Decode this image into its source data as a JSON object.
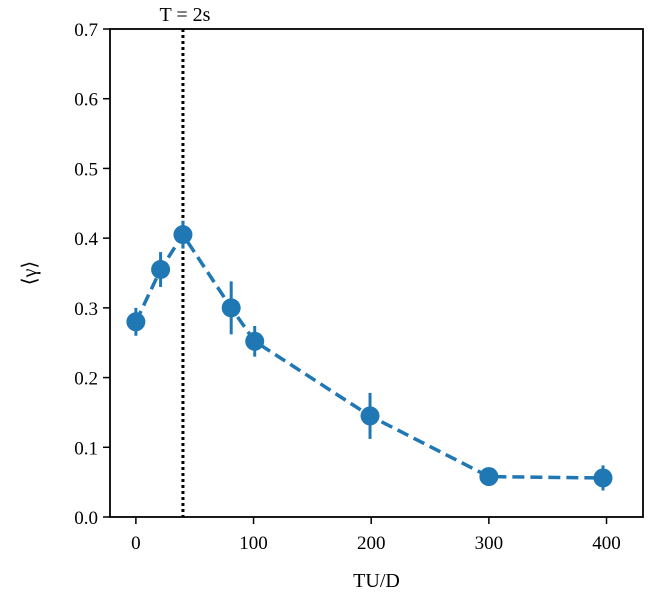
{
  "chart_data": {
    "type": "scatter",
    "xlabel": "TU/D",
    "ylabel": "⟨γ⟩",
    "xlim": [
      -22,
      431
    ],
    "ylim": [
      0.0,
      0.7
    ],
    "xticks": [
      0,
      100,
      200,
      300,
      400
    ],
    "yticks": [
      0.0,
      0.1,
      0.2,
      0.3,
      0.4,
      0.5,
      0.6,
      0.7
    ],
    "xtick_labels": [
      "0",
      "100",
      "200",
      "300",
      "400"
    ],
    "ytick_labels": [
      "0.0",
      "0.1",
      "0.2",
      "0.3",
      "0.4",
      "0.5",
      "0.6",
      "0.7"
    ],
    "grid": false,
    "series": [
      {
        "color": "#1f77b4",
        "line_style": "dashed",
        "marker": "circle",
        "points": [
          {
            "x": 0,
            "y": 0.28,
            "err": 0.02
          },
          {
            "x": 21,
            "y": 0.355,
            "err": 0.025
          },
          {
            "x": 40,
            "y": 0.405,
            "err": 0.02
          },
          {
            "x": 81,
            "y": 0.3,
            "err": 0.038
          },
          {
            "x": 101,
            "y": 0.252,
            "err": 0.022
          },
          {
            "x": 199,
            "y": 0.145,
            "err": 0.033
          },
          {
            "x": 300,
            "y": 0.058,
            "err": 0.004
          },
          {
            "x": 397,
            "y": 0.056,
            "err": 0.018
          }
        ]
      }
    ],
    "annotations": [
      {
        "type": "vline",
        "x": 40,
        "line_style": "dotted",
        "color": "#000000",
        "label": "T = 2s"
      }
    ]
  }
}
